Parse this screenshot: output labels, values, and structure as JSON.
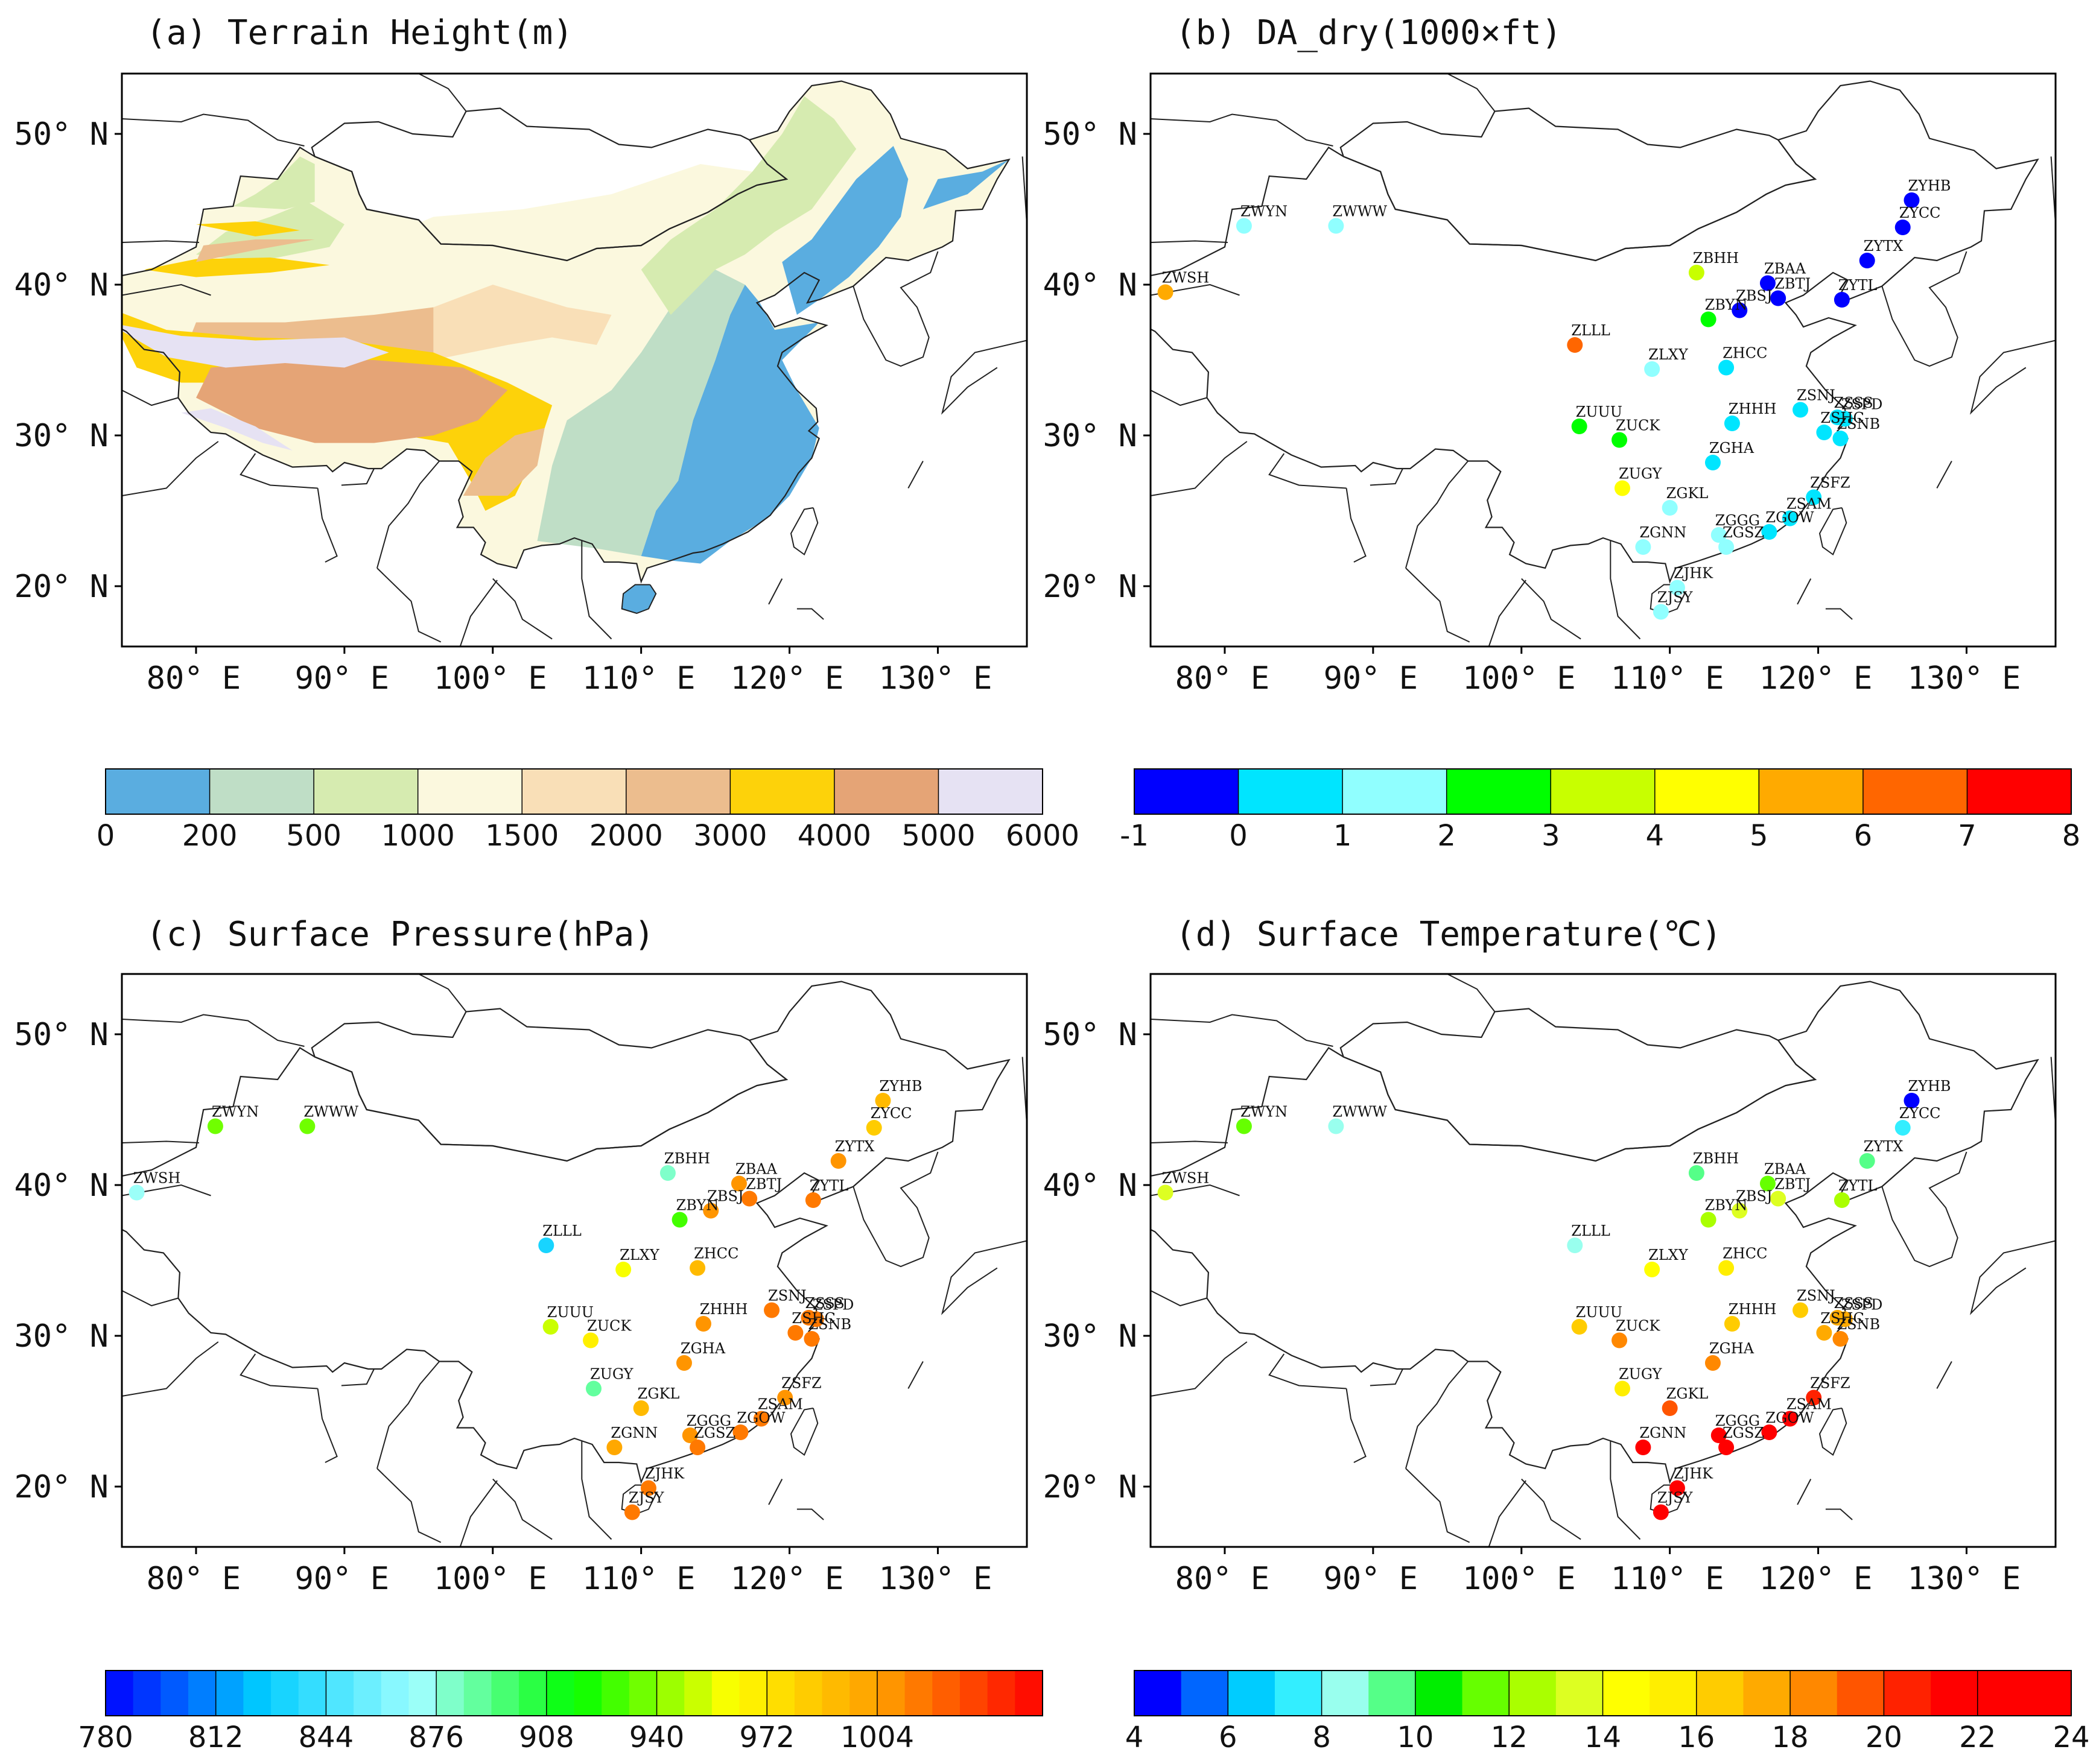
{
  "panels": [
    {
      "id": "a",
      "title": "(a) Terrain Height(m)",
      "kind": "terrain"
    },
    {
      "id": "b",
      "title": "(b) DA_dry(1000×ft)",
      "kind": "stations",
      "var": "da"
    },
    {
      "id": "c",
      "title": "(c) Surface Pressure(hPa)",
      "kind": "stations",
      "var": "ps"
    },
    {
      "id": "d",
      "title": "(d) Surface Temperature(℃)",
      "kind": "stations",
      "var": "t"
    }
  ],
  "axes": {
    "lon_ticks": [
      "80° E",
      "90° E",
      "100° E",
      "110° E",
      "120° E",
      "130° E"
    ],
    "lat_ticks": [
      "50° N",
      "40° N",
      "30° N",
      "20° N"
    ],
    "lon_values": [
      80,
      90,
      100,
      110,
      120,
      130
    ],
    "lat_values": [
      50,
      40,
      30,
      20
    ],
    "lon_range": [
      75,
      136
    ],
    "lat_range": [
      16,
      54
    ]
  },
  "colorbars": {
    "terrain": {
      "labels": [
        "0",
        "200",
        "500",
        "1000",
        "1500",
        "2000",
        "3000",
        "4000",
        "5000",
        "6000"
      ],
      "colors": [
        "#5aade0",
        "#bfdec6",
        "#d6ebb0",
        "#fbf8de",
        "#f9dfb7",
        "#ecbd8e",
        "#fdd20a",
        "#e5a476",
        "#e6e2f3"
      ]
    },
    "da": {
      "labels": [
        "-1",
        "0",
        "1",
        "2",
        "3",
        "4",
        "5",
        "6",
        "7",
        "8"
      ],
      "colors": [
        "#0000ff",
        "#00e5ff",
        "#90ffff",
        "#00ff00",
        "#c8ff00",
        "#ffff00",
        "#ffaa00",
        "#ff6600",
        "#ff0000"
      ]
    },
    "ps": {
      "labels": [
        "780",
        "812",
        "844",
        "876",
        "908",
        "940",
        "972",
        "1004"
      ],
      "min": 780,
      "max": 1052,
      "step": 8,
      "stops": [
        "#0000ff",
        "#00ccff",
        "#a0ffff",
        "#00ff00",
        "#ffff00",
        "#ff9900",
        "#ff0000"
      ]
    },
    "t": {
      "labels": [
        "4",
        "6",
        "8",
        "10",
        "12",
        "14",
        "16",
        "18",
        "20",
        "22",
        "24"
      ],
      "colors": [
        "#0000ff",
        "#0066ff",
        "#00ccff",
        "#33eeff",
        "#99ffee",
        "#55ff88",
        "#00ee00",
        "#66ff00",
        "#aaff00",
        "#ddff22",
        "#ffff00",
        "#ffee00",
        "#ffcc00",
        "#ffaa00",
        "#ff8800",
        "#ff5500",
        "#ff2200",
        "#ff0000",
        "#ff0000",
        "#ff0000"
      ]
    }
  },
  "stations": [
    {
      "code": "ZYHB",
      "lon": 126.3,
      "lat": 45.6,
      "da": -0.8,
      "ps": 990,
      "t": 4.5
    },
    {
      "code": "ZYCC",
      "lon": 125.7,
      "lat": 43.8,
      "da": -0.9,
      "ps": 985,
      "t": 7
    },
    {
      "code": "ZYTX",
      "lon": 123.3,
      "lat": 41.6,
      "da": -0.7,
      "ps": 1008,
      "t": 9
    },
    {
      "code": "ZYTL",
      "lon": 121.6,
      "lat": 39.0,
      "da": -0.5,
      "ps": 1012,
      "t": 12.5
    },
    {
      "code": "ZBAA",
      "lon": 116.6,
      "lat": 40.1,
      "da": -0.6,
      "ps": 1010,
      "t": 11.5
    },
    {
      "code": "ZBTJ",
      "lon": 117.3,
      "lat": 39.1,
      "da": -0.5,
      "ps": 1012,
      "t": 13.5
    },
    {
      "code": "ZBSJ",
      "lon": 114.7,
      "lat": 38.3,
      "da": -0.4,
      "ps": 1005,
      "t": 13.5
    },
    {
      "code": "ZBYN",
      "lon": 112.6,
      "lat": 37.7,
      "da": 2.4,
      "ps": 930,
      "t": 12
    },
    {
      "code": "ZBHH",
      "lon": 111.8,
      "lat": 40.8,
      "da": 3.6,
      "ps": 880,
      "t": 9
    },
    {
      "code": "ZWYN",
      "lon": 81.3,
      "lat": 43.9,
      "da": 1.2,
      "ps": 935,
      "t": 11
    },
    {
      "code": "ZWWW",
      "lon": 87.5,
      "lat": 43.9,
      "da": 1.0,
      "ps": 935,
      "t": 8.5
    },
    {
      "code": "ZWSH",
      "lon": 76.0,
      "lat": 39.5,
      "da": 5.5,
      "ps": 870,
      "t": 13.5
    },
    {
      "code": "ZLLL",
      "lon": 103.6,
      "lat": 36.0,
      "da": 6.3,
      "ps": 830,
      "t": 8
    },
    {
      "code": "ZLXY",
      "lon": 108.8,
      "lat": 34.4,
      "da": 1.5,
      "ps": 960,
      "t": 14
    },
    {
      "code": "ZHCC",
      "lon": 113.8,
      "lat": 34.5,
      "da": 0.6,
      "ps": 995,
      "t": 15
    },
    {
      "code": "ZUUU",
      "lon": 103.9,
      "lat": 30.6,
      "da": 2.4,
      "ps": 950,
      "t": 16.5
    },
    {
      "code": "ZUCK",
      "lon": 106.6,
      "lat": 29.7,
      "da": 2.6,
      "ps": 965,
      "t": 18.5
    },
    {
      "code": "ZHHH",
      "lon": 114.2,
      "lat": 30.8,
      "da": 0.5,
      "ps": 1010,
      "t": 16.5
    },
    {
      "code": "ZSNJ",
      "lon": 118.8,
      "lat": 31.7,
      "da": 0.2,
      "ps": 1015,
      "t": 16
    },
    {
      "code": "ZSSS",
      "lon": 121.3,
      "lat": 31.2,
      "da": 0.1,
      "ps": 1018,
      "t": 17.5
    },
    {
      "code": "ZSPD",
      "lon": 121.8,
      "lat": 31.1,
      "da": 0.1,
      "ps": 1018,
      "t": 17.5
    },
    {
      "code": "ZSNB",
      "lon": 121.5,
      "lat": 29.8,
      "da": 0.2,
      "ps": 1015,
      "t": 18
    },
    {
      "code": "ZSHC",
      "lon": 120.4,
      "lat": 30.2,
      "da": 0.2,
      "ps": 1015,
      "t": 17
    },
    {
      "code": "ZGHA",
      "lon": 112.9,
      "lat": 28.2,
      "da": 0.5,
      "ps": 1005,
      "t": 18.5
    },
    {
      "code": "ZUGY",
      "lon": 106.8,
      "lat": 26.5,
      "da": 4.5,
      "ps": 890,
      "t": 15.5
    },
    {
      "code": "ZGKL",
      "lon": 110.0,
      "lat": 25.2,
      "da": 1.2,
      "ps": 990,
      "t": 19
    },
    {
      "code": "ZSFZ",
      "lon": 119.7,
      "lat": 25.9,
      "da": 0.3,
      "ps": 1010,
      "t": 20.5
    },
    {
      "code": "ZSAM",
      "lon": 118.1,
      "lat": 24.5,
      "da": 0.2,
      "ps": 1012,
      "t": 21.5
    },
    {
      "code": "ZGOW",
      "lon": 116.7,
      "lat": 23.6,
      "da": 0.3,
      "ps": 1012,
      "t": 21.5
    },
    {
      "code": "ZGGG",
      "lon": 113.3,
      "lat": 23.4,
      "da": 1.2,
      "ps": 1010,
      "t": 22
    },
    {
      "code": "ZGSZ",
      "lon": 113.8,
      "lat": 22.6,
      "da": 1.1,
      "ps": 1012,
      "t": 22
    },
    {
      "code": "ZGNN",
      "lon": 108.2,
      "lat": 22.6,
      "da": 1.3,
      "ps": 1000,
      "t": 22.5
    },
    {
      "code": "ZJHK",
      "lon": 110.5,
      "lat": 19.9,
      "da": 1.2,
      "ps": 1012,
      "t": 24
    },
    {
      "code": "ZJSY",
      "lon": 109.4,
      "lat": 18.3,
      "da": 1.3,
      "ps": 1012,
      "t": 24.5
    }
  ]
}
